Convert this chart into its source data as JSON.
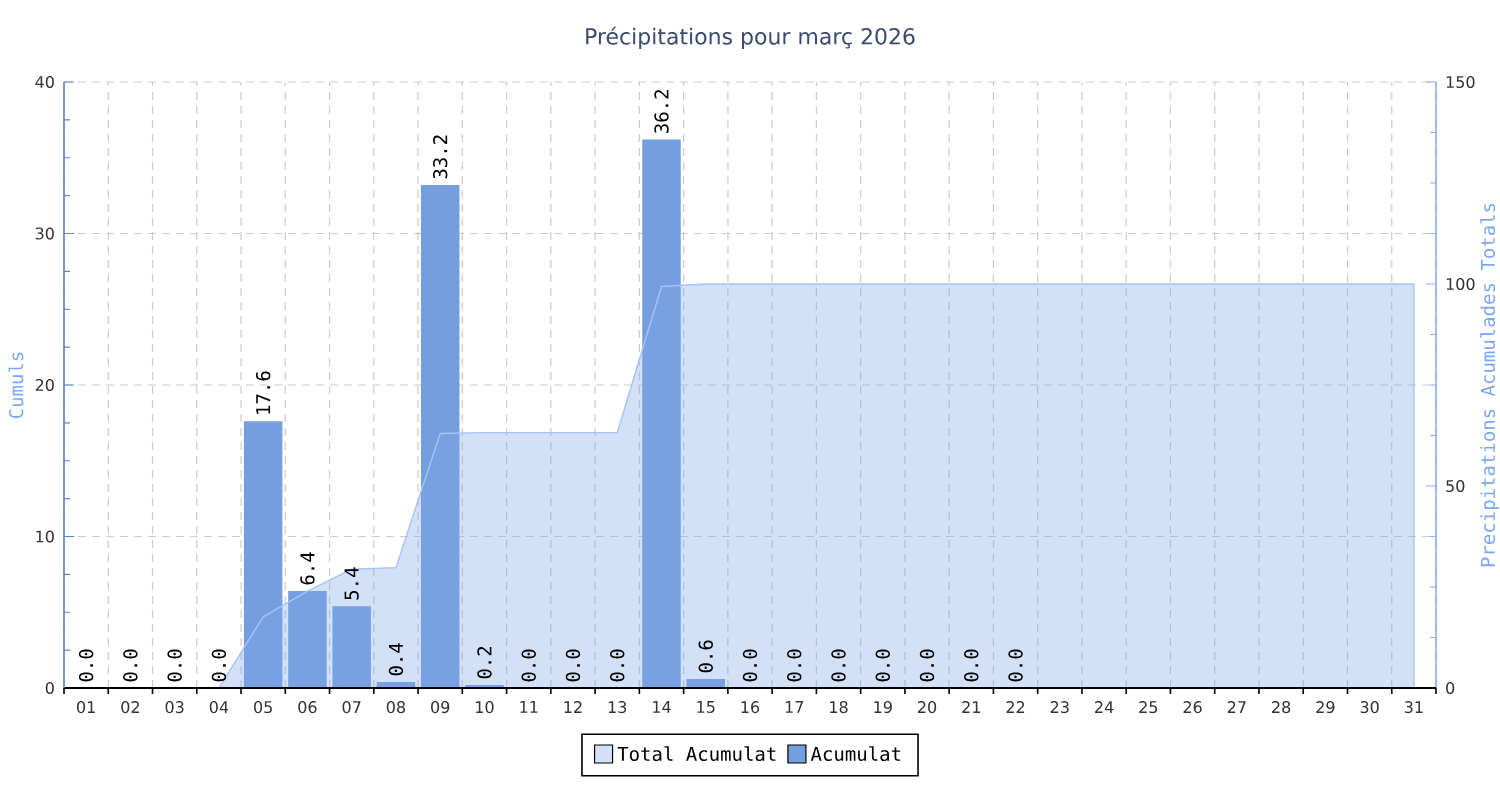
{
  "chart_data": {
    "type": "bar",
    "title": "Précipitations pour març 2026",
    "ylabel": "Cumuls",
    "y2label": "Precipitations Acumulades Totals",
    "categories": [
      "01",
      "02",
      "03",
      "04",
      "05",
      "06",
      "07",
      "08",
      "09",
      "10",
      "11",
      "12",
      "13",
      "14",
      "15",
      "16",
      "17",
      "18",
      "19",
      "20",
      "21",
      "22",
      "23",
      "24",
      "25",
      "26",
      "27",
      "28",
      "29",
      "30",
      "31"
    ],
    "series": [
      {
        "name": "Total Acumulat",
        "type": "area",
        "axis": "y2",
        "color": "#d2e0f8",
        "values": [
          0,
          0,
          0,
          0,
          17.6,
          24.0,
          29.4,
          29.8,
          63.0,
          63.2,
          63.2,
          63.2,
          63.2,
          99.4,
          100.0,
          100.0,
          100.0,
          100.0,
          100.0,
          100.0,
          100.0,
          100.0,
          100.0,
          100.0,
          100.0,
          100.0,
          100.0,
          100.0,
          100.0,
          100.0,
          100.0
        ]
      },
      {
        "name": "Acumulat",
        "color": "#759ee0",
        "values": [
          0,
          0,
          0,
          0,
          17.6,
          6.4,
          5.4,
          0.4,
          33.2,
          0.2,
          0,
          0,
          0,
          36.2,
          0.6,
          0,
          0,
          0,
          0,
          0,
          0,
          0,
          null,
          null,
          null,
          null,
          null,
          null,
          null,
          null,
          null
        ],
        "value_labels": [
          "0.0",
          "0.0",
          "0.0",
          "0.0",
          "17.6",
          "6.4",
          "5.4",
          "0.4",
          "33.2",
          "0.2",
          "0.0",
          "0.0",
          "0.0",
          "36.2",
          "0.6",
          "0.0",
          "0.0",
          "0.0",
          "0.0",
          "0.0",
          "0.0",
          "0.0",
          null,
          null,
          null,
          null,
          null,
          null,
          null,
          null,
          null
        ]
      }
    ],
    "ylim": [
      0,
      40
    ],
    "yticks": [
      0,
      10,
      20,
      30,
      40
    ],
    "y2lim": [
      0,
      150
    ],
    "y2ticks": [
      0,
      50,
      100,
      150
    ],
    "grid": true,
    "legend": "bottom"
  }
}
